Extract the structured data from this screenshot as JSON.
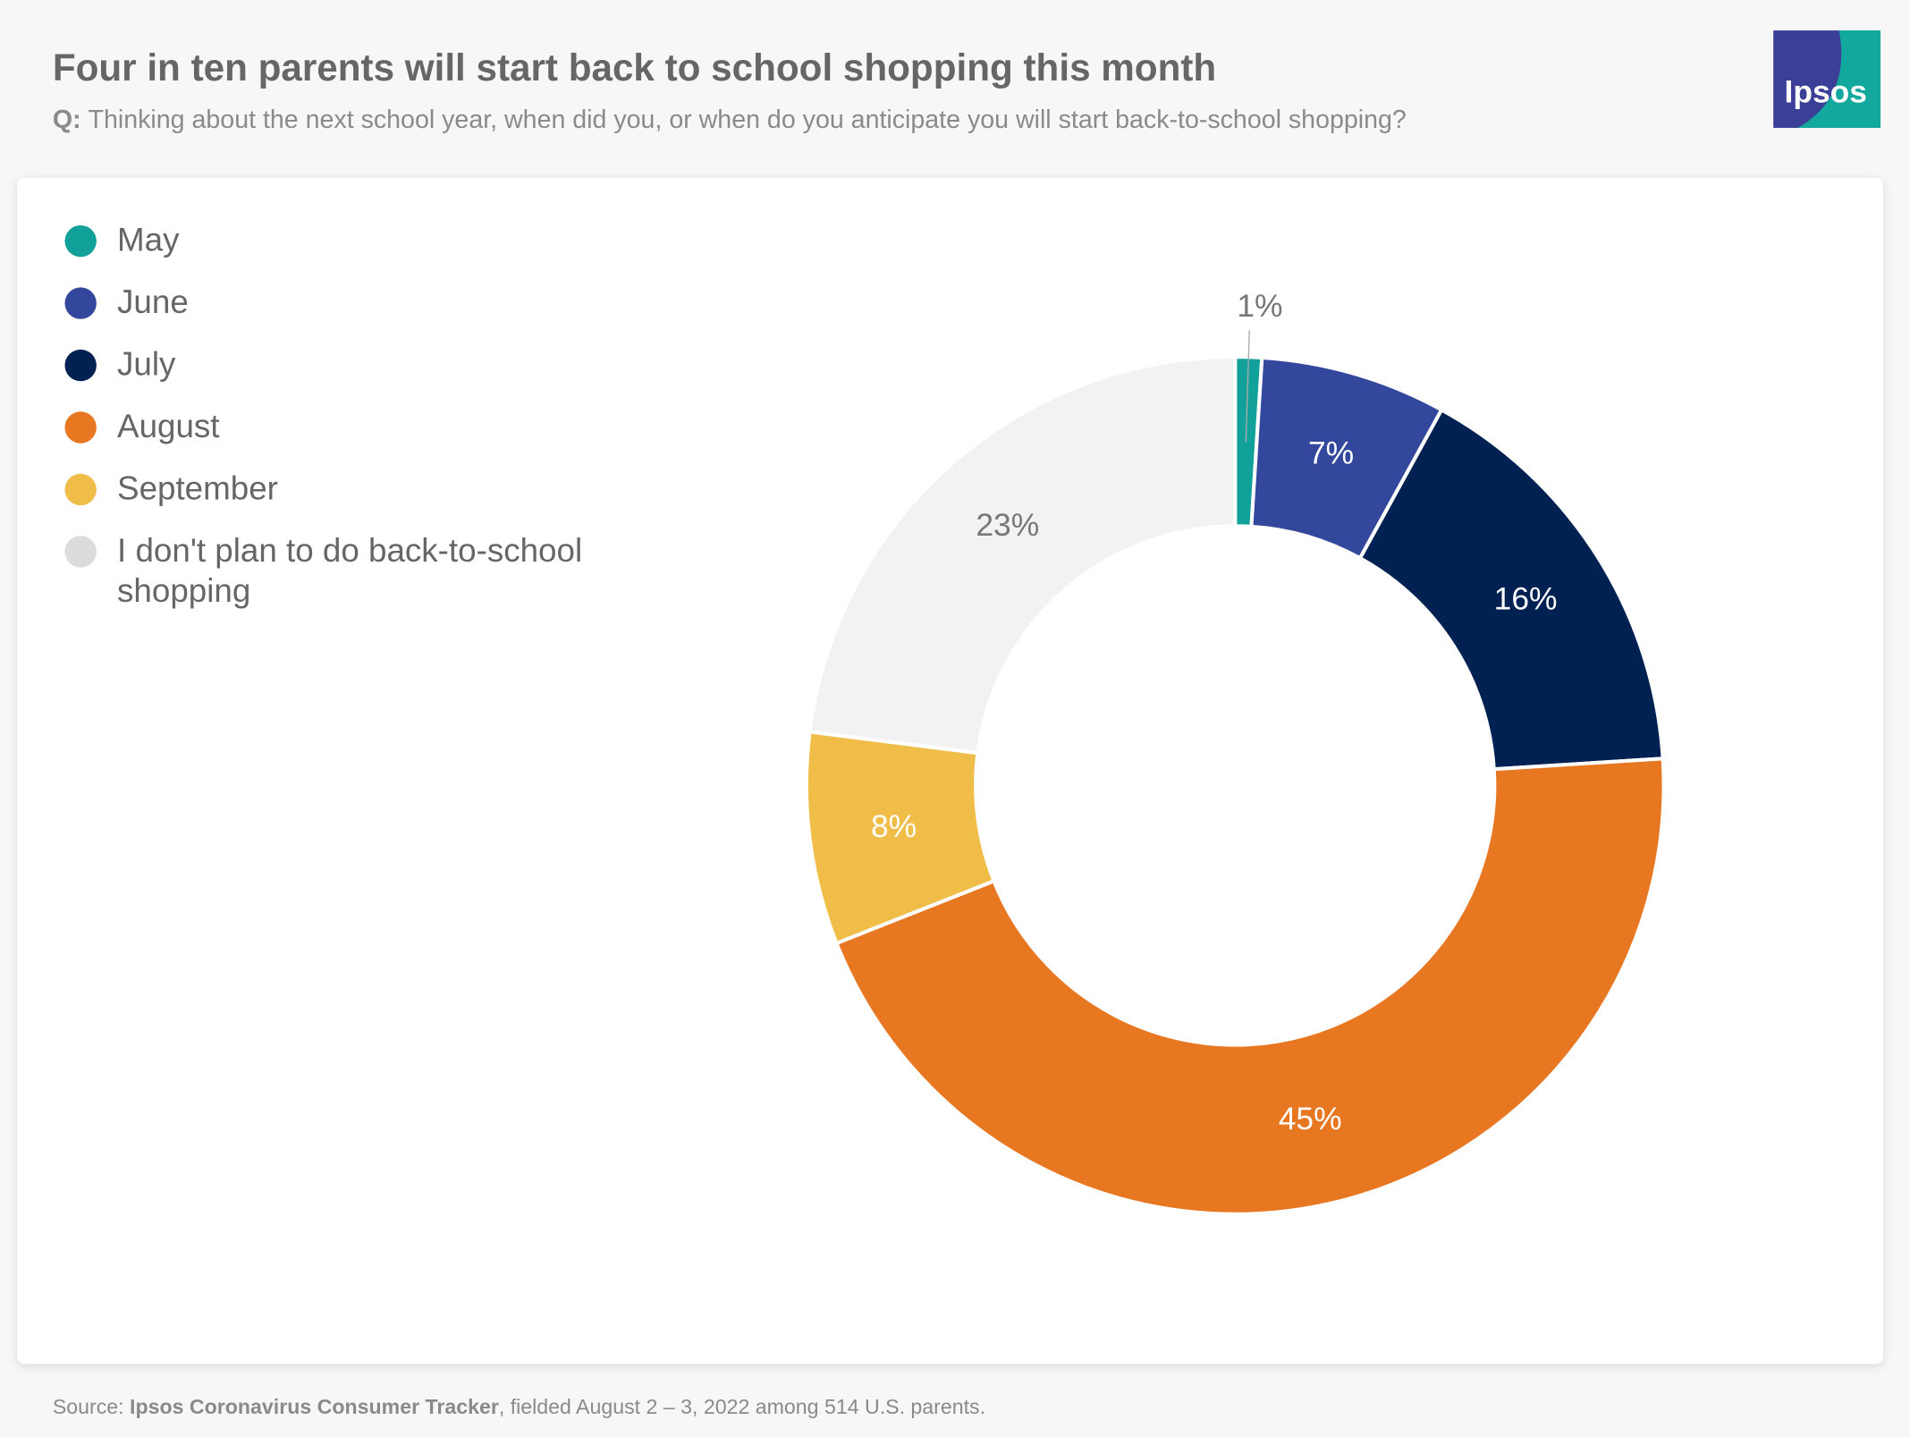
{
  "chart_data": {
    "type": "donut",
    "title": "Four in ten parents will start back to school shopping this month",
    "question_label": "Q:",
    "subtitle": "Thinking about the next school year, when did you, or when do you anticipate you will start back-to-school shopping?",
    "categories": [
      "May",
      "June",
      "July",
      "August",
      "September",
      "I don't plan to do back-to-school shopping"
    ],
    "values": [
      1,
      7,
      16,
      45,
      8,
      23
    ],
    "value_labels": [
      "1%",
      "7%",
      "16%",
      "45%",
      "8%",
      "23%"
    ],
    "colors": [
      "#12a09a",
      "#33479c",
      "#002152",
      "#e87722",
      "#f0be48",
      "#f2f2f2"
    ],
    "legend": "top-left"
  },
  "source": {
    "label": "Source:",
    "name": "Ipsos Coronavirus Consumer Tracker",
    "details": ", fielded August 2 – 3, 2022 among 514 U.S. parents."
  },
  "logo": {
    "text": "Ipsos"
  }
}
